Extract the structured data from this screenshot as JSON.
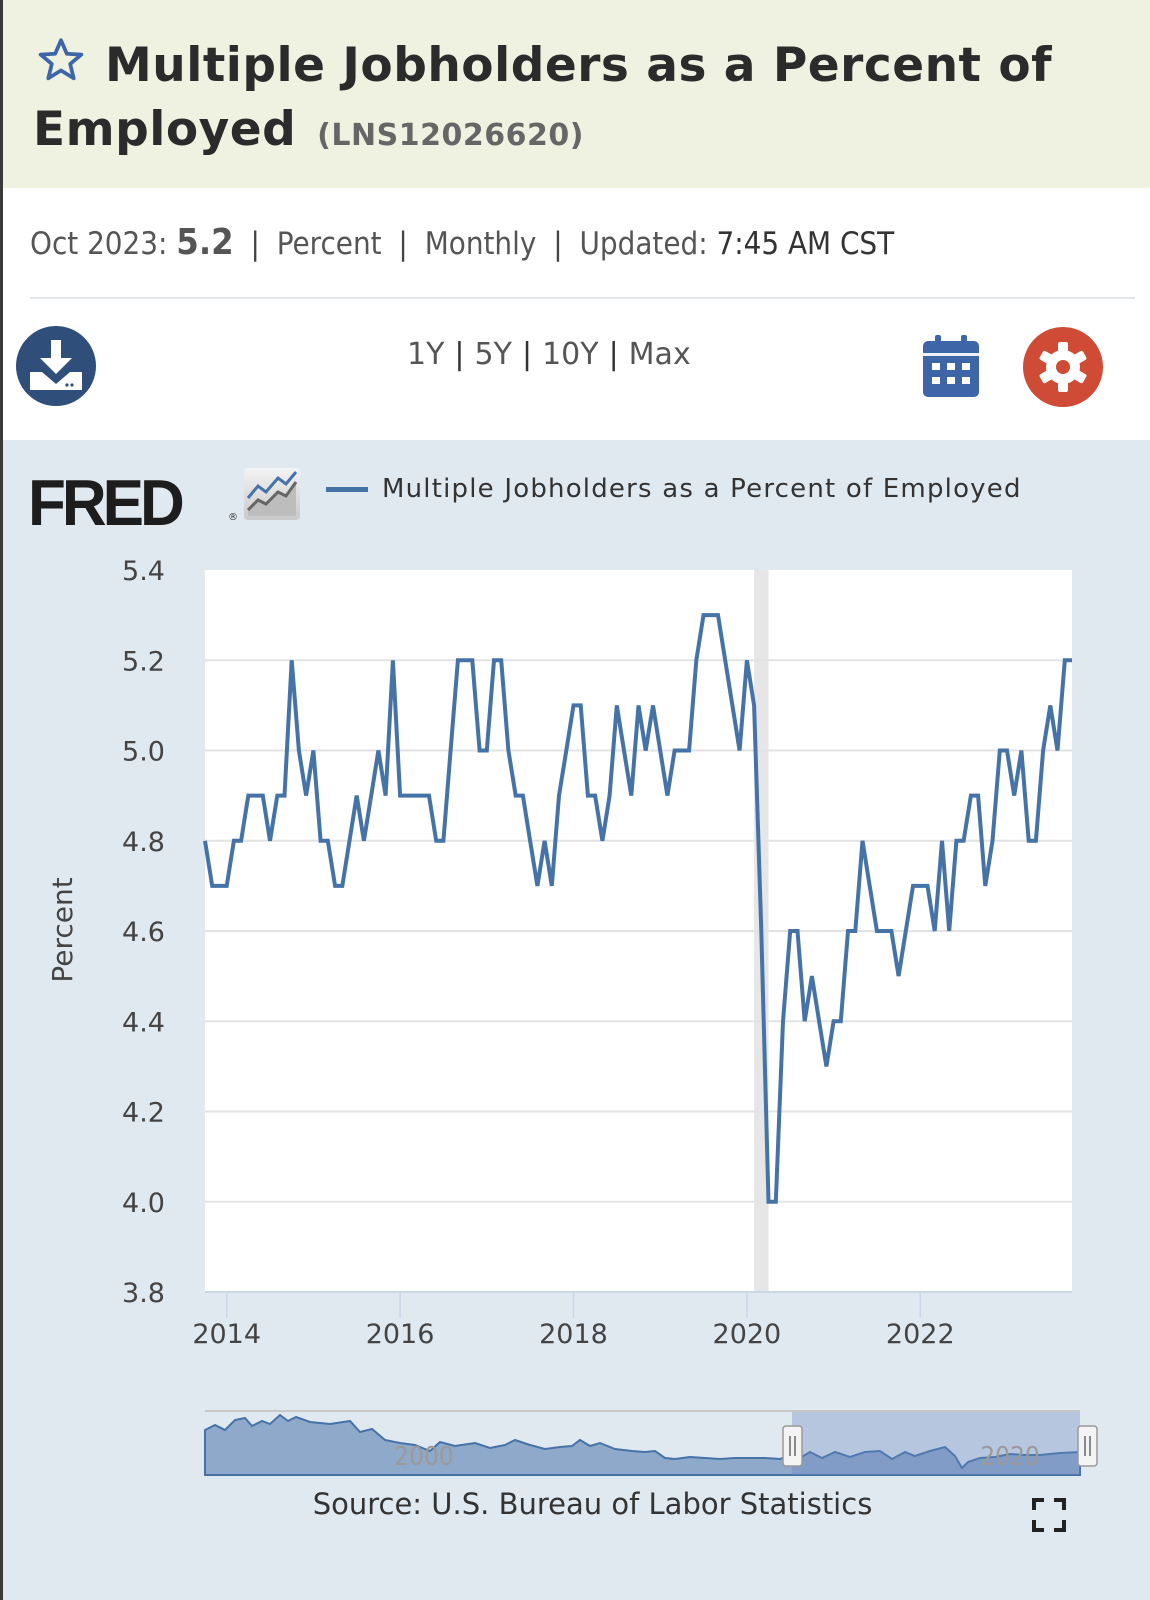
{
  "header": {
    "title": "Multiple Jobholders as a Percent of Employed",
    "series_id": "(LNS12026620)",
    "favorite_icon": "star-outline-icon"
  },
  "meta": {
    "date_label": "Oct 2023:",
    "latest_value": "5.2",
    "units": "Percent",
    "frequency": "Monthly",
    "updated_label": "Updated:",
    "updated_time": "7:45 AM CST",
    "separator": "|"
  },
  "toolbar": {
    "download_icon": "download-icon",
    "ranges": [
      "1Y",
      "5Y",
      "10Y",
      "Max"
    ],
    "calendar_icon": "calendar-icon",
    "settings_icon": "gear-icon"
  },
  "branding": {
    "logo_text": "FRED",
    "registered": "®"
  },
  "colors": {
    "series": "#4572a7",
    "header_bg": "#f0f2e1",
    "chart_bg": "#e1e9f0",
    "download_button": "#2f4e7a",
    "calendar": "#3d65a8",
    "settings_button": "#cf4b35",
    "recession_shade": "#e6e6e6"
  },
  "footer": {
    "source": "Source: U.S. Bureau of Labor Statistics",
    "fullscreen_icon": "fullscreen-icon"
  },
  "navigator": {
    "labels": [
      "2000",
      "2020"
    ],
    "handle_icon": "drag-handle-icon"
  },
  "chart_data": {
    "type": "line",
    "title": "Multiple Jobholders as a Percent of Employed",
    "legend": [
      "Multiple Jobholders as a Percent of Employed"
    ],
    "legend_position": "top",
    "xlabel": "",
    "ylabel": "Percent",
    "ylim": [
      3.8,
      5.4
    ],
    "yticks": [
      "5.4",
      "5.2",
      "5.0",
      "4.8",
      "4.6",
      "4.4",
      "4.2",
      "4.0",
      "3.8"
    ],
    "xticks": [
      "2014",
      "2016",
      "2018",
      "2020",
      "2022"
    ],
    "x_start": "2013-10",
    "x_end": "2023-10",
    "frequency": "monthly",
    "grid": true,
    "recession": {
      "start": "2020-02",
      "end": "2020-04"
    },
    "series": [
      {
        "name": "Multiple Jobholders as a Percent of Employed",
        "values": [
          4.8,
          4.7,
          4.7,
          4.7,
          4.8,
          4.8,
          4.9,
          4.9,
          4.9,
          4.8,
          4.9,
          4.9,
          5.2,
          5.0,
          4.9,
          5.0,
          4.8,
          4.8,
          4.7,
          4.7,
          4.8,
          4.9,
          4.8,
          4.9,
          5.0,
          4.9,
          5.2,
          4.9,
          4.9,
          4.9,
          4.9,
          4.9,
          4.8,
          4.8,
          5.0,
          5.2,
          5.2,
          5.2,
          5.0,
          5.0,
          5.2,
          5.2,
          5.0,
          4.9,
          4.9,
          4.8,
          4.7,
          4.8,
          4.7,
          4.9,
          5.0,
          5.1,
          5.1,
          4.9,
          4.9,
          4.8,
          4.9,
          5.1,
          5.0,
          4.9,
          5.1,
          5.0,
          5.1,
          5.0,
          4.9,
          5.0,
          5.0,
          5.0,
          5.2,
          5.3,
          5.3,
          5.3,
          5.2,
          5.1,
          5.0,
          5.2,
          5.1,
          4.6,
          4.0,
          4.0,
          4.4,
          4.6,
          4.6,
          4.4,
          4.5,
          4.4,
          4.3,
          4.4,
          4.4,
          4.6,
          4.6,
          4.8,
          4.7,
          4.6,
          4.6,
          4.6,
          4.5,
          4.6,
          4.7,
          4.7,
          4.7,
          4.6,
          4.8,
          4.6,
          4.8,
          4.8,
          4.9,
          4.9,
          4.7,
          4.8,
          5.0,
          5.0,
          4.9,
          5.0,
          4.8,
          4.8,
          5.0,
          5.1,
          5.0,
          5.2,
          5.2
        ]
      }
    ]
  }
}
